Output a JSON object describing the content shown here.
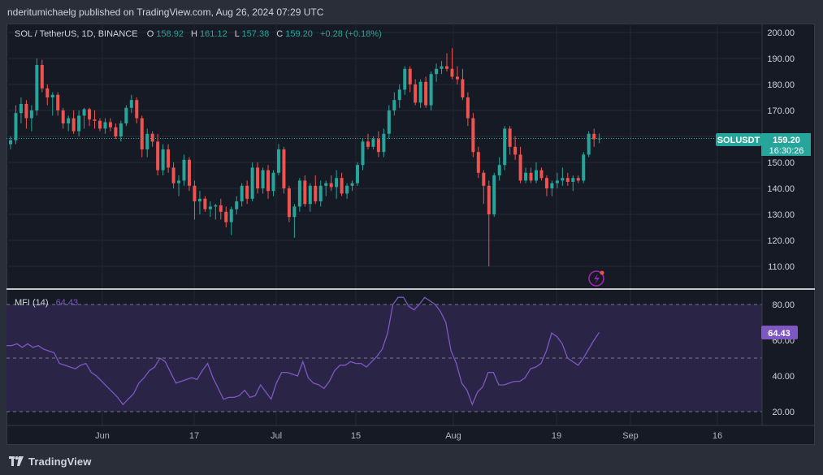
{
  "header": {
    "publisher_line": "nderitumichaelg published on TradingView.com, Aug 26, 2024 07:29 UTC"
  },
  "legend": {
    "symbol": "SOL / TetherUS, 1D, BINANCE",
    "o_label": "O",
    "o_value": "158.92",
    "h_label": "H",
    "h_value": "161.12",
    "l_label": "L",
    "l_value": "157.38",
    "c_label": "C",
    "c_value": "159.20",
    "change": "+0.28 (+0.18%)"
  },
  "price_tag": {
    "ticker": "SOLUSDT",
    "price": "159.20",
    "countdown": "16:30:26"
  },
  "indicator": {
    "name": "MFI (14)",
    "value": "64.43"
  },
  "footer": {
    "brand": "TradingView"
  },
  "colors": {
    "up": "#26a69a",
    "down": "#ef5350",
    "mfi_line": "#7e57c2",
    "mfi_band": "#2a2546",
    "background": "#161a25",
    "grid": "#242832"
  },
  "chart_data": [
    {
      "type": "candlestick",
      "title": "SOL / TetherUS, 1D, BINANCE",
      "x_labels": [
        "Jun",
        "17",
        "Jul",
        "15",
        "Aug",
        "19",
        "Sep",
        "16"
      ],
      "y_ticks": [
        "200.00",
        "190.00",
        "180.00",
        "170.00",
        "160.00",
        "150.00",
        "140.00",
        "130.00",
        "120.00",
        "110.00"
      ],
      "ylim": [
        103,
        201
      ],
      "grid": true,
      "last_price": 159.2,
      "candles": [
        [
          157.0,
          160.0,
          155.0,
          158.5
        ],
        [
          158.5,
          172.0,
          157.0,
          169.0
        ],
        [
          169.0,
          175.0,
          165.0,
          172.5
        ],
        [
          172.5,
          174.0,
          163.0,
          167.0
        ],
        [
          167.0,
          172.0,
          162.0,
          170.0
        ],
        [
          170.0,
          190.0,
          168.0,
          187.5
        ],
        [
          187.5,
          189.5,
          177.0,
          178.5
        ],
        [
          178.5,
          180.0,
          172.0,
          175.0
        ],
        [
          175.0,
          177.0,
          168.0,
          176.0
        ],
        [
          176.0,
          177.0,
          168.0,
          170.0
        ],
        [
          170.0,
          171.0,
          163.0,
          165.0
        ],
        [
          165.0,
          168.0,
          162.0,
          167.0
        ],
        [
          167.0,
          170.0,
          161.0,
          162.0
        ],
        [
          162.0,
          170.0,
          160.0,
          168.0
        ],
        [
          168.0,
          171.0,
          163.0,
          170.5
        ],
        [
          170.5,
          171.0,
          164.0,
          166.5
        ],
        [
          166.5,
          170.0,
          163.0,
          166.0
        ],
        [
          166.0,
          167.0,
          162.0,
          163.0
        ],
        [
          163.0,
          167.0,
          161.0,
          165.5
        ],
        [
          165.5,
          167.0,
          162.0,
          163.5
        ],
        [
          163.5,
          165.0,
          159.0,
          160.0
        ],
        [
          160.0,
          166.0,
          158.0,
          165.0
        ],
        [
          165.0,
          172.0,
          164.0,
          171.0
        ],
        [
          171.0,
          176.0,
          169.0,
          174.0
        ],
        [
          174.0,
          175.0,
          165.0,
          167.0
        ],
        [
          167.0,
          168.0,
          152.0,
          155.0
        ],
        [
          155.0,
          163.0,
          152.0,
          161.0
        ],
        [
          161.0,
          162.0,
          156.0,
          158.0
        ],
        [
          158.0,
          161.0,
          145.0,
          147.0
        ],
        [
          147.0,
          157.0,
          145.0,
          155.0
        ],
        [
          155.0,
          157.0,
          146.0,
          148.0
        ],
        [
          148.0,
          150.0,
          140.0,
          142.0
        ],
        [
          142.0,
          145.0,
          137.0,
          143.0
        ],
        [
          143.0,
          153.0,
          141.0,
          151.0
        ],
        [
          151.0,
          152.0,
          139.0,
          141.0
        ],
        [
          141.0,
          143.0,
          128.0,
          135.0
        ],
        [
          135.0,
          139.0,
          130.0,
          136.0
        ],
        [
          136.0,
          137.0,
          131.0,
          132.0
        ],
        [
          132.0,
          135.0,
          129.0,
          133.0
        ],
        [
          133.0,
          134.0,
          128.0,
          133.5
        ],
        [
          133.5,
          136.0,
          128.0,
          131.0
        ],
        [
          131.0,
          133.0,
          125.0,
          127.0
        ],
        [
          127.0,
          133.0,
          122.0,
          132.0
        ],
        [
          132.0,
          137.0,
          130.0,
          135.0
        ],
        [
          135.0,
          142.0,
          133.0,
          141.0
        ],
        [
          141.0,
          143.0,
          134.0,
          136.0
        ],
        [
          136.0,
          150.0,
          135.0,
          148.0
        ],
        [
          148.0,
          150.0,
          138.0,
          140.0
        ],
        [
          140.0,
          148.0,
          138.0,
          147.0
        ],
        [
          147.0,
          149.0,
          136.0,
          139.0
        ],
        [
          139.0,
          147.0,
          137.0,
          146.0
        ],
        [
          146.0,
          157.0,
          145.0,
          155.0
        ],
        [
          155.0,
          156.0,
          138.0,
          140.0
        ],
        [
          140.0,
          141.0,
          127.0,
          129.0
        ],
        [
          129.0,
          134.0,
          121.0,
          133.0
        ],
        [
          133.0,
          144.0,
          131.0,
          143.0
        ],
        [
          143.0,
          145.0,
          133.0,
          134.0
        ],
        [
          134.0,
          142.0,
          131.0,
          141.0
        ],
        [
          141.0,
          145.0,
          134.0,
          135.0
        ],
        [
          135.0,
          143.0,
          133.0,
          141.0
        ],
        [
          141.0,
          143.0,
          137.0,
          142.0
        ],
        [
          142.0,
          145.0,
          139.0,
          140.5
        ],
        [
          140.5,
          147.0,
          136.0,
          144.0
        ],
        [
          144.0,
          146.0,
          137.0,
          138.0
        ],
        [
          138.0,
          142.0,
          136.0,
          141.0
        ],
        [
          141.0,
          143.0,
          139.0,
          142.0
        ],
        [
          142.0,
          150.0,
          141.0,
          149.0
        ],
        [
          149.0,
          159.0,
          147.0,
          158.0
        ],
        [
          158.0,
          161.0,
          155.0,
          156.0
        ],
        [
          156.0,
          160.0,
          155.0,
          159.0
        ],
        [
          159.0,
          162.0,
          152.0,
          154.0
        ],
        [
          154.0,
          163.0,
          152.0,
          161.0
        ],
        [
          161.0,
          172.0,
          159.0,
          170.0
        ],
        [
          170.0,
          177.0,
          168.0,
          174.0
        ],
        [
          174.0,
          180.0,
          171.0,
          178.0
        ],
        [
          178.0,
          187.0,
          176.0,
          186.0
        ],
        [
          186.0,
          187.0,
          177.0,
          180.0
        ],
        [
          180.0,
          182.0,
          172.0,
          173.0
        ],
        [
          173.0,
          182.0,
          171.0,
          181.0
        ],
        [
          181.0,
          183.0,
          171.0,
          172.0
        ],
        [
          172.0,
          185.0,
          170.0,
          184.0
        ],
        [
          184.0,
          188.0,
          181.0,
          186.0
        ],
        [
          186.0,
          189.0,
          184.0,
          187.0
        ],
        [
          187.0,
          192.0,
          185.0,
          186.0
        ],
        [
          186.0,
          194.0,
          182.0,
          183.0
        ],
        [
          183.0,
          187.0,
          180.0,
          182.0
        ],
        [
          182.0,
          186.0,
          174.0,
          175.0
        ],
        [
          175.0,
          177.0,
          164.0,
          167.0
        ],
        [
          167.0,
          169.0,
          152.0,
          154.0
        ],
        [
          154.0,
          156.0,
          144.0,
          146.0
        ],
        [
          146.0,
          147.0,
          134.0,
          141.0
        ],
        [
          141.0,
          143.0,
          110.0,
          130.0
        ],
        [
          130.0,
          146.0,
          129.0,
          145.0
        ],
        [
          145.0,
          152.0,
          143.0,
          149.0
        ],
        [
          149.0,
          164.0,
          147.0,
          163.0
        ],
        [
          163.0,
          164.0,
          153.0,
          156.0
        ],
        [
          156.0,
          160.0,
          151.0,
          153.0
        ],
        [
          153.0,
          156.0,
          142.0,
          143.0
        ],
        [
          143.0,
          148.0,
          142.0,
          146.0
        ],
        [
          146.0,
          148.0,
          142.0,
          143.0
        ],
        [
          143.0,
          150.0,
          142.0,
          147.0
        ],
        [
          147.0,
          148.0,
          143.0,
          144.0
        ],
        [
          144.0,
          145.0,
          137.0,
          140.0
        ],
        [
          140.0,
          143.0,
          137.0,
          142.0
        ],
        [
          142.0,
          146.0,
          140.0,
          143.0
        ],
        [
          143.0,
          148.0,
          141.0,
          144.0
        ],
        [
          144.0,
          146.0,
          141.0,
          142.5
        ],
        [
          142.5,
          145.0,
          139.0,
          144.0
        ],
        [
          144.0,
          145.0,
          142.0,
          143.0
        ],
        [
          143.0,
          154.0,
          142.0,
          153.0
        ],
        [
          153.0,
          162.0,
          152.0,
          161.0
        ],
        [
          161.0,
          163.0,
          156.0,
          158.9
        ],
        [
          158.92,
          161.12,
          157.38,
          159.2
        ]
      ]
    },
    {
      "type": "line",
      "title": "MFI (14)",
      "y_ticks": [
        "80.00",
        "60.00",
        "40.00",
        "20.00"
      ],
      "ylim": [
        17,
        84
      ],
      "bands": [
        20,
        50,
        80
      ],
      "values": [
        57,
        57,
        58,
        56,
        58,
        56,
        57,
        55,
        54,
        53,
        47,
        46,
        45,
        44,
        46,
        47,
        42,
        40,
        37,
        34,
        31,
        28,
        24,
        27,
        30,
        36,
        39,
        43,
        45,
        50,
        48,
        42,
        36,
        37,
        38,
        39,
        38,
        43,
        47,
        39,
        33,
        27,
        28,
        28,
        29,
        32,
        28,
        29,
        35,
        31,
        27,
        36,
        42,
        42,
        41,
        40,
        48,
        39,
        36,
        35,
        33,
        37,
        43,
        46,
        46,
        48,
        47,
        47,
        45,
        48,
        51,
        55,
        64,
        80,
        84,
        84,
        79,
        77,
        80,
        84,
        82,
        80,
        76,
        70,
        54,
        47,
        36,
        32,
        24,
        31,
        34,
        42,
        42,
        35,
        35,
        36,
        37,
        37,
        39,
        44,
        45,
        47,
        54,
        64,
        62,
        58,
        50,
        48,
        46,
        50,
        55,
        60,
        64.43
      ]
    }
  ]
}
